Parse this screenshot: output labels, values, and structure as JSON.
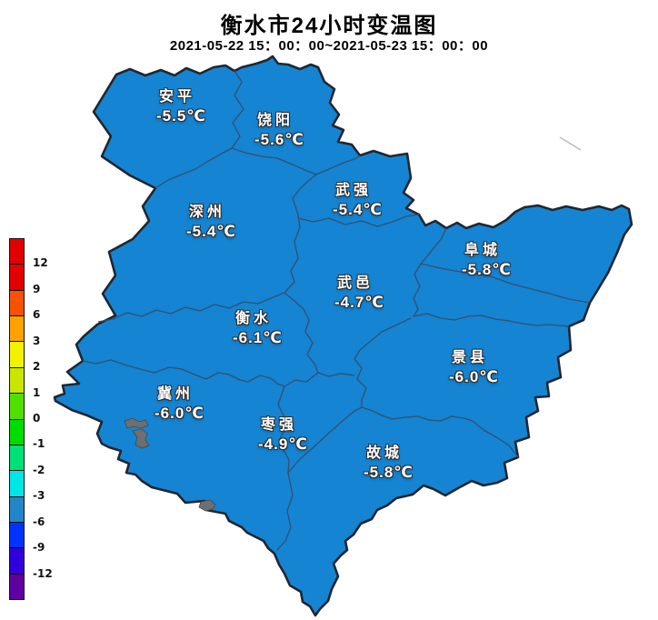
{
  "title": "衡水市24小时变温图",
  "subtitle": "2021-05-22 15：00：00~2021-05-23 15：00：00",
  "map": {
    "region_name": "衡水市",
    "fill_color": "#1584D2",
    "outer_border_color": "#20262e",
    "inner_border_color": "#35506e",
    "lake_color": "#6f6f6f"
  },
  "districts": [
    {
      "id": "anping",
      "name": "安平",
      "temp": "-5.5℃"
    },
    {
      "id": "raoyang",
      "name": "饶阳",
      "temp": "-5.6℃"
    },
    {
      "id": "wuqiang",
      "name": "武强",
      "temp": "-5.4℃"
    },
    {
      "id": "shenzhou",
      "name": "深州",
      "temp": "-5.4℃"
    },
    {
      "id": "fucheng",
      "name": "阜城",
      "temp": "-5.8℃"
    },
    {
      "id": "wuyi",
      "name": "武邑",
      "temp": "-4.7℃"
    },
    {
      "id": "hengshui",
      "name": "衡水",
      "temp": "-6.1℃"
    },
    {
      "id": "jingxian",
      "name": "景县",
      "temp": "-6.0℃"
    },
    {
      "id": "jizhou",
      "name": "冀州",
      "temp": "-6.0℃"
    },
    {
      "id": "zaoqiang",
      "name": "枣强",
      "temp": "-4.9℃"
    },
    {
      "id": "gucheng",
      "name": "故城",
      "temp": "-5.8℃"
    }
  ],
  "legend": {
    "tick_labels": [
      "12",
      "9",
      "6",
      "3",
      "2",
      "1",
      "0",
      "-1",
      "-2",
      "-3",
      "-6",
      "-9",
      "-12"
    ],
    "segment_colors": [
      "#E20000",
      "#E20000",
      "#F75200",
      "#FFA200",
      "#F2F200",
      "#C8E600",
      "#50E000",
      "#00DC00",
      "#00E078",
      "#00E6E6",
      "#2287C8",
      "#0033FF",
      "#3000DC",
      "#5E00A2"
    ]
  }
}
